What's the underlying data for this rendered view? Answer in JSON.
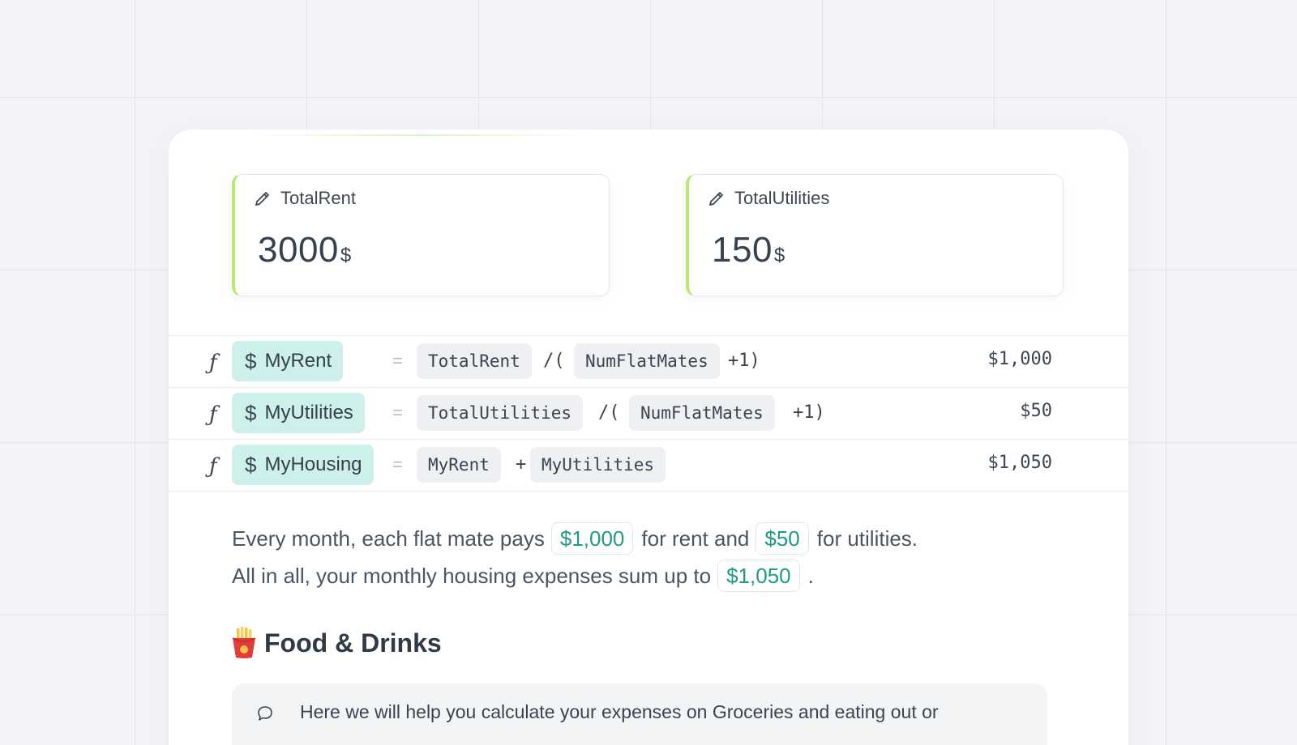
{
  "inputs": [
    {
      "name": "TotalRent",
      "value": "3000",
      "unit": "$",
      "icon": "pencil-icon"
    },
    {
      "name": "TotalUtilities",
      "value": "150",
      "unit": "$",
      "icon": "pencil-icon"
    }
  ],
  "formulas": [
    {
      "fx": "ƒ",
      "var_symbol": "$",
      "var_name": "MyRent",
      "eq": "=",
      "t1": "TotalRent",
      "op1": "/(",
      "t2": "NumFlatMates",
      "op2": "+1)",
      "result": "$1,000"
    },
    {
      "fx": "ƒ",
      "var_symbol": "$",
      "var_name": "MyUtilities",
      "eq": "=",
      "t1": "TotalUtilities",
      "op1": "/(",
      "t2": "NumFlatMates",
      "op2": "+1)",
      "result": "$50"
    },
    {
      "fx": "ƒ",
      "var_symbol": "$",
      "var_name": "MyHousing",
      "eq": "=",
      "t1": "MyRent",
      "op1": "+",
      "t2": "MyUtilities",
      "result": "$1,050"
    }
  ],
  "summary": {
    "line1_a": "Every month, each flat mate pays",
    "rent_value": "$1,000",
    "line1_b": "for rent and",
    "util_value": "$50",
    "line1_c": "for utilities.",
    "line2_a": "All in all, your monthly housing expenses sum up to",
    "housing_value": "$1,050",
    "line2_b": "."
  },
  "section": {
    "icon": "fries-icon",
    "title": "Food & Drinks"
  },
  "note": {
    "icon": "speech-bubble-icon",
    "text": "Here we will help you calculate your expenses on Groceries and eating out or"
  },
  "colors": {
    "accent_green": "#b5ec6a",
    "chip_teal": "#cdf0ea",
    "value_teal": "#1f9a83"
  }
}
